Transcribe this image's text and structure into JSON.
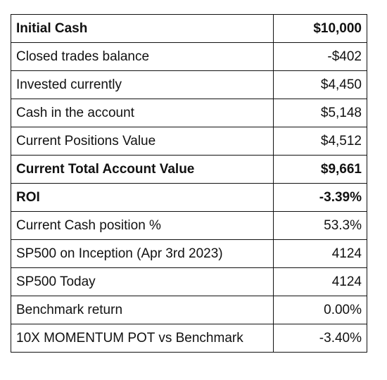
{
  "table": {
    "rows": [
      {
        "label": "Initial Cash",
        "value": "$10,000",
        "bold": true
      },
      {
        "label": "Closed trades balance",
        "value": "-$402",
        "bold": false
      },
      {
        "label": "Invested currently",
        "value": "$4,450",
        "bold": false
      },
      {
        "label": "Cash in the account",
        "value": "$5,148",
        "bold": false
      },
      {
        "label": "Current Positions Value",
        "value": "$4,512",
        "bold": false
      },
      {
        "label": "Current Total Account Value",
        "value": "$9,661",
        "bold": true
      },
      {
        "label": "ROI",
        "value": "-3.39%",
        "bold": true
      },
      {
        "label": "Current Cash position %",
        "value": "53.3%",
        "bold": false
      },
      {
        "label": "SP500 on Inception (Apr 3rd 2023)",
        "value": "4124",
        "bold": false
      },
      {
        "label": "SP500 Today",
        "value": "4124",
        "bold": false
      },
      {
        "label": "Benchmark return",
        "value": "0.00%",
        "bold": false
      },
      {
        "label": "10X MOMENTUM POT vs Benchmark",
        "value": "-3.40%",
        "bold": false
      }
    ]
  }
}
